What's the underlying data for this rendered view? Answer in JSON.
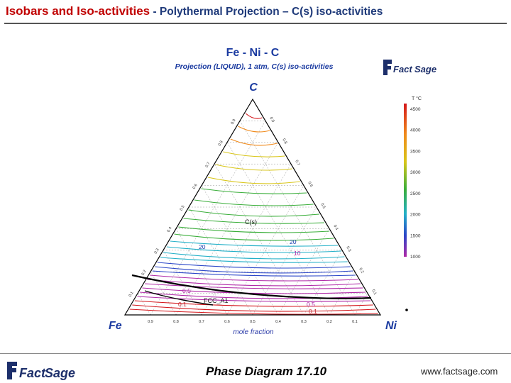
{
  "slide": {
    "title_part1": "Isobars and Iso-activities",
    "title_sep": " - ",
    "title_part2": "Polythermal Projection – C(s) iso-activities"
  },
  "diagram": {
    "title": "Fe - Ni - C",
    "subtitle": "Projection (LIQUID),  1 atm, C(s) iso-activities",
    "vertex_top": "C",
    "vertex_left": "Fe",
    "vertex_right": "Ni",
    "bottom_axis_label": "mole fraction",
    "bottom_ticks": [
      "0.9",
      "0.8",
      "0.7",
      "0.6",
      "0.5",
      "0.4",
      "0.3",
      "0.2",
      "0.1"
    ],
    "left_ticks": [
      "0.1",
      "0.2",
      "0.3",
      "0.4",
      "0.5",
      "0.6",
      "0.7",
      "0.8",
      "0.9"
    ],
    "right_ticks": [
      "0.9",
      "0.8",
      "0.7",
      "0.6",
      "0.5",
      "0.4",
      "0.3",
      "0.2",
      "0.1"
    ],
    "region_labels": {
      "cs": "C(s)",
      "fcc": "FCC_A1"
    },
    "contour_labels": [
      "20",
      "20",
      "10",
      "0.5",
      "0.5",
      "0.1",
      "0.1"
    ],
    "colors": {
      "hot": "#d4171c",
      "orange": "#f08a1c",
      "yellow": "#d9c61a",
      "green": "#3aae3a",
      "cyan": "#24b0c8",
      "blue": "#2a46c8",
      "magenta": "#b02aa8",
      "boundary": "#000000"
    }
  },
  "legend": {
    "unit": "T °C",
    "ticks": [
      "4500",
      "4000",
      "3500",
      "3000",
      "2500",
      "2000",
      "1500",
      "1000"
    ]
  },
  "logos": {
    "brand_fact": "Fact",
    "brand_sage": "Sage"
  },
  "footer": {
    "caption": "Phase Diagram  17.10",
    "url": "www.factsage.com"
  }
}
